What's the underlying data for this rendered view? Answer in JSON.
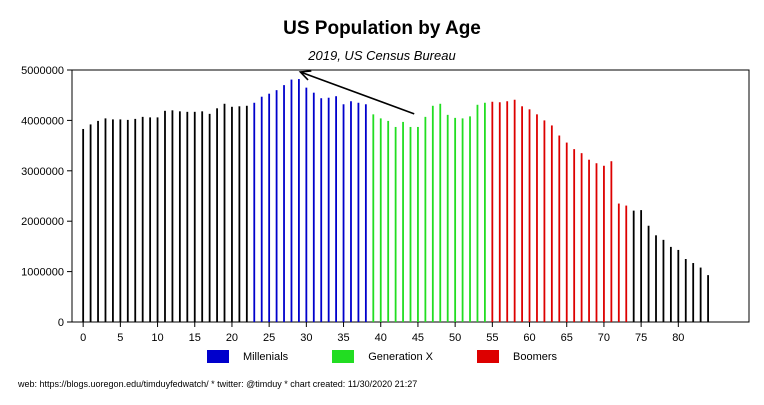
{
  "chart_data": {
    "type": "bar",
    "title": "US Population by Age",
    "subtitle": "2019, US Census Bureau",
    "xlabel": "",
    "ylabel": "",
    "x": [
      0,
      1,
      2,
      3,
      4,
      5,
      6,
      7,
      8,
      9,
      10,
      11,
      12,
      13,
      14,
      15,
      16,
      17,
      18,
      19,
      20,
      21,
      22,
      23,
      24,
      25,
      26,
      27,
      28,
      29,
      30,
      31,
      32,
      33,
      34,
      35,
      36,
      37,
      38,
      39,
      40,
      41,
      42,
      43,
      44,
      45,
      46,
      47,
      48,
      49,
      50,
      51,
      52,
      53,
      54,
      55,
      56,
      57,
      58,
      59,
      60,
      61,
      62,
      63,
      64,
      65,
      66,
      67,
      68,
      69,
      70,
      71,
      72,
      73,
      74,
      75,
      76,
      77,
      78,
      79,
      80,
      81,
      82,
      83,
      84
    ],
    "values": [
      3830000,
      3920000,
      3990000,
      4040000,
      4020000,
      4020000,
      4010000,
      4030000,
      4070000,
      4060000,
      4060000,
      4190000,
      4200000,
      4180000,
      4170000,
      4170000,
      4180000,
      4130000,
      4240000,
      4330000,
      4270000,
      4280000,
      4290000,
      4350000,
      4470000,
      4530000,
      4600000,
      4700000,
      4810000,
      4820000,
      4650000,
      4550000,
      4440000,
      4450000,
      4480000,
      4320000,
      4380000,
      4350000,
      4320000,
      4120000,
      4040000,
      3990000,
      3870000,
      3970000,
      3870000,
      3870000,
      4070000,
      4290000,
      4330000,
      4110000,
      4050000,
      4040000,
      4080000,
      4310000,
      4350000,
      4370000,
      4360000,
      4380000,
      4410000,
      4280000,
      4220000,
      4120000,
      4000000,
      3900000,
      3700000,
      3560000,
      3430000,
      3350000,
      3220000,
      3150000,
      3100000,
      3190000,
      2350000,
      2310000,
      2210000,
      2220000,
      1910000,
      1720000,
      1630000,
      1490000,
      1430000,
      1250000,
      1170000,
      1080000,
      930000
    ],
    "ylim": [
      0,
      5000000
    ],
    "xlim": [
      -1.5,
      89.5
    ],
    "y_ticks": [
      "0",
      "1000000",
      "2000000",
      "3000000",
      "4000000",
      "5000000"
    ],
    "y_tick_values": [
      0,
      1000000,
      2000000,
      3000000,
      4000000,
      5000000
    ],
    "x_ticks": [
      "0",
      "5",
      "10",
      "15",
      "20",
      "25",
      "30",
      "35",
      "40",
      "45",
      "50",
      "55",
      "60",
      "65",
      "70",
      "75",
      "80"
    ],
    "x_tick_values": [
      0,
      5,
      10,
      15,
      20,
      25,
      30,
      35,
      40,
      45,
      50,
      55,
      60,
      65,
      70,
      75,
      80
    ],
    "series": [
      {
        "name": "Millenials",
        "color": "#0000cc",
        "age_range": [
          23,
          38
        ]
      },
      {
        "name": "Generation X",
        "color": "#22dd22",
        "age_range": [
          39,
          54
        ]
      },
      {
        "name": "Boomers",
        "color": "#dd0000",
        "age_range": [
          55,
          73
        ]
      }
    ],
    "default_color": "#000000",
    "annotation": {
      "type": "arrow",
      "from": [
        44.5,
        4130000
      ],
      "to": [
        29.2,
        4960000
      ]
    },
    "grid": false,
    "legend_position": "bottom"
  },
  "footer": "web: https://blogs.uoregon.edu/timduyfedwatch/ * twitter: @timduy * chart created: 11/30/2020 21:27"
}
